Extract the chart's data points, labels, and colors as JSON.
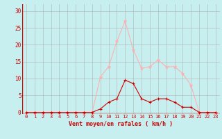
{
  "x": [
    0,
    1,
    2,
    3,
    4,
    5,
    6,
    7,
    8,
    9,
    10,
    11,
    12,
    13,
    14,
    15,
    16,
    17,
    18,
    19,
    20,
    21,
    22,
    23
  ],
  "rafales": [
    0,
    0,
    0,
    0,
    0,
    0,
    0,
    0,
    0,
    10.5,
    13.5,
    21,
    27,
    18.5,
    13,
    13.5,
    15.5,
    13.5,
    13.5,
    11.5,
    8,
    0,
    0,
    0
  ],
  "moyen": [
    0,
    0,
    0,
    0,
    0,
    0,
    0,
    0,
    0,
    1,
    3,
    4,
    9.5,
    8.5,
    4,
    3,
    4,
    4,
    3,
    1.5,
    1.5,
    0,
    0,
    0
  ],
  "color_rafales": "#FFB0B0",
  "color_moyen": "#CC0000",
  "bg_color": "#C8EFEF",
  "grid_color": "#AAAAAA",
  "axis_color": "#CC0000",
  "tick_color": "#CC0000",
  "xlabel": "Vent moyen/en rafales ( km/h )",
  "ylabel_ticks": [
    0,
    5,
    10,
    15,
    20,
    25,
    30
  ],
  "xlim": [
    -0.5,
    23.5
  ],
  "ylim": [
    -0.5,
    32
  ]
}
